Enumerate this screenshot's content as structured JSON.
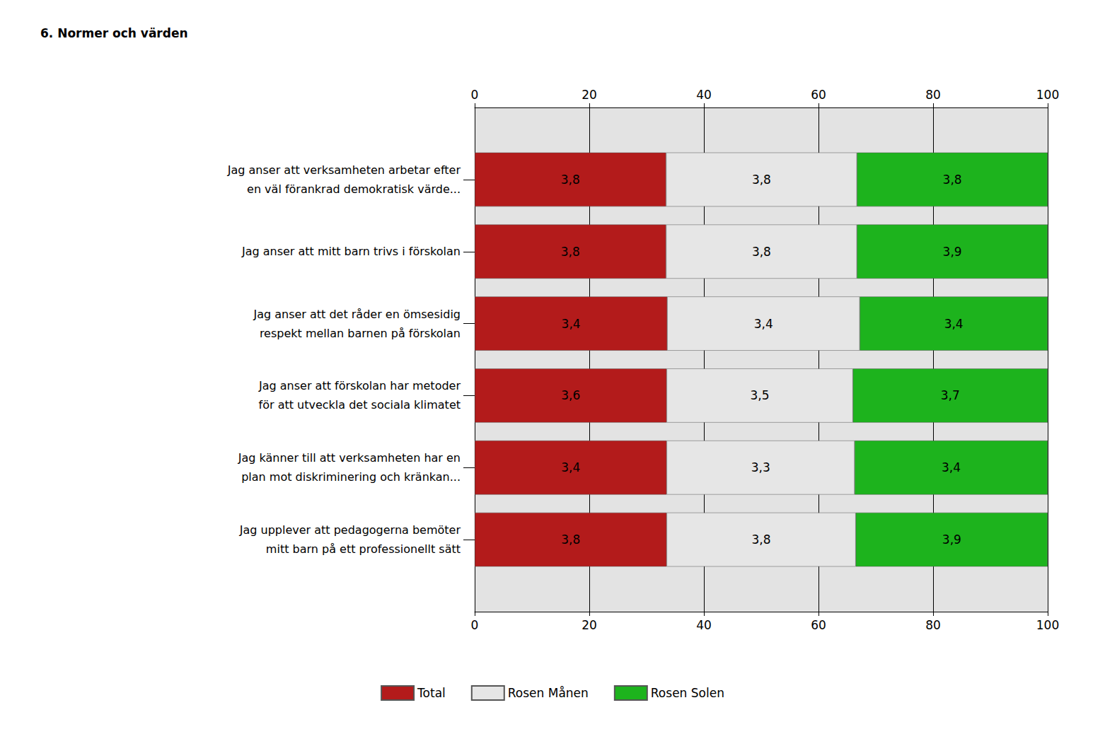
{
  "chart_data": {
    "type": "bar",
    "title": "6. Normer och värden",
    "orientation": "horizontal",
    "stacked": true,
    "grid": true,
    "legend": "bottom",
    "categories": [
      "Jag anser att verksamheten arbetar efter\nen väl förankrad demokratisk värde...",
      "Jag anser att mitt barn trivs i förskolan",
      "Jag anser att det råder en ömsesidig\nrespekt mellan barnen på förskolan",
      "Jag anser att förskolan har metoder\nför att utveckla det sociala klimatet",
      "Jag känner till att verksamheten har en\nplan mot diskriminering och kränkan...",
      "Jag upplever att pedagogerna bemöter\nmitt barn på ett professionellt sätt"
    ],
    "series": [
      {
        "name": "Total",
        "color": "#b31b1b",
        "values": [
          33.4,
          33.4,
          33.6,
          33.5,
          33.5,
          33.5
        ],
        "segment_labels": [
          "3,8",
          "3,8",
          "3,4",
          "3,6",
          "3,4",
          "3,8"
        ]
      },
      {
        "name": "Rosen Månen",
        "color": "#e6e6e6",
        "values": [
          33.3,
          33.3,
          33.6,
          32.5,
          32.8,
          33.0
        ],
        "segment_labels": [
          "3,8",
          "3,8",
          "3,4",
          "3,5",
          "3,3",
          "3,8"
        ]
      },
      {
        "name": "Rosen Solen",
        "color": "#1db31d",
        "values": [
          33.3,
          33.3,
          32.8,
          34.0,
          33.7,
          33.5
        ],
        "segment_labels": [
          "3,8",
          "3,9",
          "3,4",
          "3,7",
          "3,4",
          "3,9"
        ]
      }
    ],
    "xlim": [
      0,
      100
    ],
    "xticks": [
      0,
      20,
      40,
      60,
      80,
      100
    ]
  }
}
